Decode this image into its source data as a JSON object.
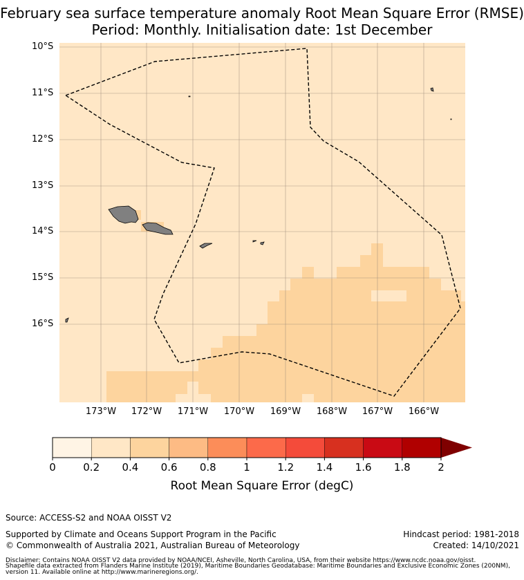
{
  "title_line1": "February sea surface temperature anomaly Root Mean Square Error (RMSE)",
  "title_line2": "Period: Monthly. Initialisation date: 1st December",
  "map": {
    "lat_labels": [
      "10°S",
      "11°S",
      "12°S",
      "13°S",
      "14°S",
      "15°S",
      "16°S"
    ],
    "lon_labels": [
      "173°W",
      "172°W",
      "171°W",
      "170°W",
      "169°W",
      "168°W",
      "167°W",
      "166°W"
    ],
    "lon_range": [
      -173.9,
      -165.1
    ],
    "lat_range": [
      -17.8,
      -9.9
    ],
    "field_colors": {
      "bin_0_2_to_0_4": "#ffe7c6",
      "bin_0_4_to_0_6": "#fdd49e",
      "land": "#808080",
      "eez_boundary": "#000000"
    }
  },
  "colorbar": {
    "label": "Root Mean Square Error (degC)",
    "ticks": [
      "0",
      "0.2",
      "0.4",
      "0.6",
      "0.8",
      "1",
      "1.2",
      "1.4",
      "1.6",
      "1.8",
      "2"
    ],
    "colors": [
      "#fff4e5",
      "#ffe7c6",
      "#fdd49e",
      "#fdbb84",
      "#fc8d59",
      "#fc6a4a",
      "#f44b3a",
      "#d7301f",
      "#c90a14",
      "#b00000"
    ],
    "extend_color": "#7f0000"
  },
  "footer": {
    "source": "Source: ACCESS-S2 and NOAA OISST V2",
    "supported": "Supported by Climate and Oceans Support Program in the Pacific",
    "copyright": "© Commonwealth of Australia 2021, Australian Bureau of Meteorology",
    "hindcast": "Hindcast period: 1981-2018",
    "created": "Created: 14/10/2021",
    "disclaimer_line1": "Disclaimer: Contains NOAA OISST V2 data provided by NOAA/NCEI, Asheville, North Carolina, USA, from their website https://www.ncdc.noaa.gov/oisst.",
    "disclaimer_line2": "Shapefile data extracted from Flanders Marine Institute (2019), Maritime Boundaries Geodatabase: Maritime Boundaries and Exclusive Economic Zones (200NM),",
    "disclaimer_line3": "version 11. Available online at http://www.marineregions.org/."
  }
}
